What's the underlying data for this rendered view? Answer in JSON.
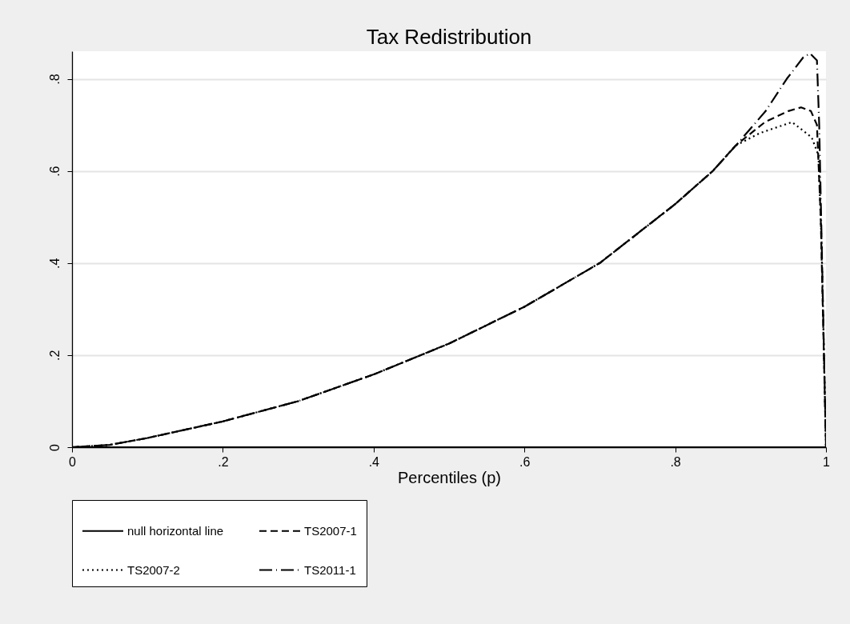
{
  "chart_data": {
    "type": "line",
    "title": "Tax Redistribution",
    "xlabel": "Percentiles (p)",
    "xlim": [
      0,
      1
    ],
    "ylim": [
      0,
      0.86
    ],
    "xticks": [
      0,
      {
        "value": 0.2,
        "label": ".2"
      },
      {
        "value": 0.4,
        "label": ".4"
      },
      {
        "value": 0.6,
        "label": ".6"
      },
      {
        "value": 0.8,
        "label": ".8"
      },
      1
    ],
    "yticks": [
      0,
      {
        "value": 0.2,
        "label": ".2"
      },
      {
        "value": 0.4,
        "label": ".4"
      },
      {
        "value": 0.6,
        "label": ".6"
      },
      {
        "value": 0.8,
        "label": ".8"
      }
    ],
    "grid": "y",
    "legend": "bottom",
    "series": [
      {
        "name": "null horizontal line",
        "color": "#000000",
        "line_style": "solid",
        "x": [
          0,
          1
        ],
        "values": [
          0,
          0
        ]
      },
      {
        "name": "TS2007-1",
        "color": "#000000",
        "line_style": "dashed",
        "x": [
          0,
          0.05,
          0.1,
          0.2,
          0.3,
          0.4,
          0.5,
          0.6,
          0.7,
          0.8,
          0.85,
          0.88,
          0.919,
          0.95,
          0.967,
          0.98,
          0.988,
          0.993,
          1
        ],
        "values": [
          0,
          0.005,
          0.02,
          0.056,
          0.1,
          0.158,
          0.225,
          0.305,
          0.4,
          0.528,
          0.6,
          0.655,
          0.706,
          0.73,
          0.738,
          0.73,
          0.7,
          0.5,
          0
        ]
      },
      {
        "name": "TS2007-2",
        "color": "#000000",
        "line_style": "dotted",
        "x": [
          0,
          0.05,
          0.1,
          0.2,
          0.3,
          0.4,
          0.5,
          0.6,
          0.7,
          0.8,
          0.85,
          0.88,
          0.912,
          0.955,
          0.981,
          0.99,
          0.994,
          1
        ],
        "values": [
          0,
          0.005,
          0.02,
          0.056,
          0.1,
          0.158,
          0.225,
          0.305,
          0.4,
          0.528,
          0.6,
          0.655,
          0.682,
          0.706,
          0.673,
          0.634,
          0.45,
          0
        ]
      },
      {
        "name": "TS2011-1",
        "color": "#000000",
        "line_style": "dashdot",
        "x": [
          0,
          0.05,
          0.1,
          0.2,
          0.3,
          0.4,
          0.5,
          0.6,
          0.7,
          0.8,
          0.85,
          0.882,
          0.92,
          0.948,
          0.97,
          0.979,
          0.988,
          0.991,
          1
        ],
        "values": [
          0,
          0.005,
          0.02,
          0.056,
          0.1,
          0.158,
          0.225,
          0.305,
          0.4,
          0.528,
          0.6,
          0.658,
          0.73,
          0.8,
          0.847,
          0.855,
          0.84,
          0.7,
          0
        ]
      }
    ]
  }
}
